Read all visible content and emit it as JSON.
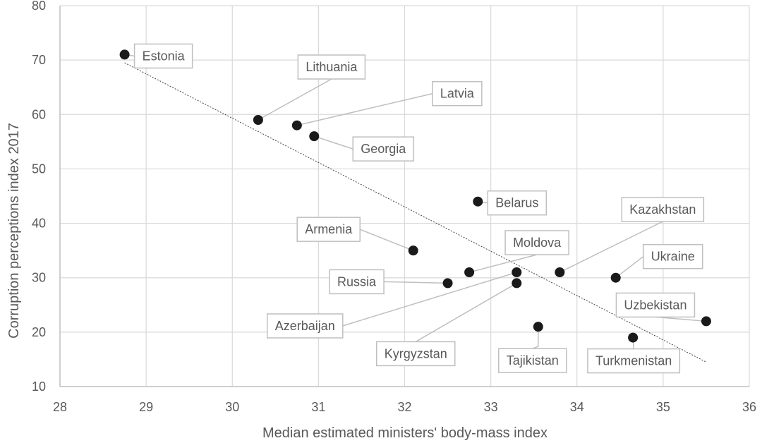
{
  "chart_data": {
    "type": "scatter",
    "xlabel": "Median estimated ministers' body-mass index",
    "ylabel": "Corruption perceptions index 2017",
    "xlim": [
      28,
      36
    ],
    "ylim": [
      10,
      80
    ],
    "xticks": [
      "28",
      "29",
      "30",
      "31",
      "32",
      "33",
      "34",
      "35",
      "36"
    ],
    "yticks": [
      "10",
      "20",
      "30",
      "40",
      "50",
      "60",
      "70",
      "80"
    ],
    "grid": true,
    "legend": "none",
    "point_color": "#1a1a1a",
    "trendline": {
      "style": "dotted linear",
      "x": [
        28.75,
        35.5
      ],
      "y": [
        69.5,
        14.5
      ]
    },
    "points": [
      {
        "label": "Estonia",
        "x": 28.75,
        "y": 71
      },
      {
        "label": "Lithuania",
        "x": 30.3,
        "y": 59
      },
      {
        "label": "Latvia",
        "x": 30.75,
        "y": 58
      },
      {
        "label": "Georgia",
        "x": 30.95,
        "y": 56
      },
      {
        "label": "Belarus",
        "x": 32.85,
        "y": 44
      },
      {
        "label": "Armenia",
        "x": 32.1,
        "y": 35
      },
      {
        "label": "Moldova",
        "x": 32.75,
        "y": 31
      },
      {
        "label": "Kazakhstan",
        "x": 33.8,
        "y": 31
      },
      {
        "label": "Ukraine",
        "x": 34.45,
        "y": 30
      },
      {
        "label": "Russia",
        "x": 32.5,
        "y": 29
      },
      {
        "label": "Azerbaijan",
        "x": 33.3,
        "y": 31
      },
      {
        "label": "Kyrgyzstan",
        "x": 33.3,
        "y": 29
      },
      {
        "label": "Uzbekistan",
        "x": 35.5,
        "y": 22
      },
      {
        "label": "Tajikistan",
        "x": 33.55,
        "y": 21
      },
      {
        "label": "Turkmenistan",
        "x": 34.65,
        "y": 19
      }
    ]
  }
}
